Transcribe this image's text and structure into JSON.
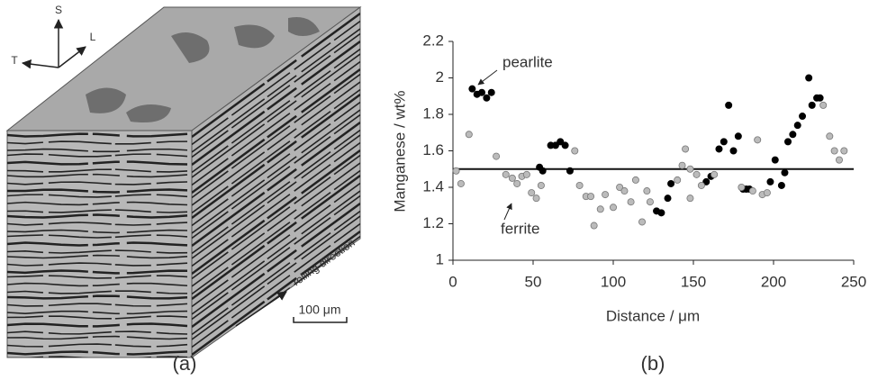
{
  "panel_a": {
    "axes": {
      "s": "S",
      "l": "L",
      "t": "T"
    },
    "rolling": "rolling direction",
    "scale": "100 μm",
    "label": "(a)"
  },
  "chart_data": {
    "type": "scatter",
    "panel_label": "(b)",
    "x_label": "Distance / μm",
    "y_label": "Manganese / wt%",
    "xlim": [
      0,
      250
    ],
    "xticks": [
      0,
      50,
      100,
      150,
      200,
      250
    ],
    "ylim": [
      1,
      2.2
    ],
    "yticks": [
      1,
      1.2,
      1.4,
      1.6,
      1.8,
      2,
      2.2
    ],
    "hline": 1.5,
    "series": [
      {
        "name": "pearlite",
        "color": "#000000",
        "x": [
          12,
          15,
          18,
          21,
          24,
          54,
          56,
          61,
          64,
          67,
          70,
          73,
          127,
          130,
          134,
          136,
          158,
          161,
          166,
          169,
          172,
          175,
          178,
          181,
          183,
          185,
          198,
          201,
          205,
          207,
          209,
          212,
          215,
          218,
          222,
          224,
          227,
          229
        ],
        "values": [
          1.94,
          1.91,
          1.92,
          1.89,
          1.92,
          1.51,
          1.49,
          1.63,
          1.63,
          1.65,
          1.63,
          1.49,
          1.27,
          1.26,
          1.34,
          1.42,
          1.43,
          1.46,
          1.61,
          1.65,
          1.85,
          1.6,
          1.68,
          1.39,
          1.39,
          1.39,
          1.43,
          1.55,
          1.41,
          1.48,
          1.65,
          1.69,
          1.74,
          1.79,
          2.0,
          1.85,
          1.89,
          1.89
        ]
      },
      {
        "name": "ferrite",
        "color": "#bbbbbb",
        "x": [
          2,
          5,
          10,
          27,
          33,
          37,
          40,
          43,
          46,
          49,
          52,
          55,
          76,
          79,
          83,
          86,
          88,
          92,
          95,
          100,
          104,
          107,
          111,
          114,
          118,
          121,
          123,
          140,
          143,
          145,
          148,
          148,
          152,
          155,
          163,
          180,
          187,
          190,
          193,
          196,
          231,
          235,
          238,
          241,
          244
        ],
        "values": [
          1.49,
          1.42,
          1.69,
          1.57,
          1.47,
          1.45,
          1.42,
          1.46,
          1.47,
          1.37,
          1.34,
          1.41,
          1.6,
          1.41,
          1.35,
          1.35,
          1.19,
          1.28,
          1.36,
          1.29,
          1.4,
          1.38,
          1.32,
          1.44,
          1.21,
          1.38,
          1.32,
          1.44,
          1.52,
          1.61,
          1.34,
          1.5,
          1.47,
          1.41,
          1.47,
          1.4,
          1.38,
          1.66,
          1.36,
          1.37,
          1.85,
          1.68,
          1.6,
          1.55,
          1.6
        ]
      }
    ]
  }
}
